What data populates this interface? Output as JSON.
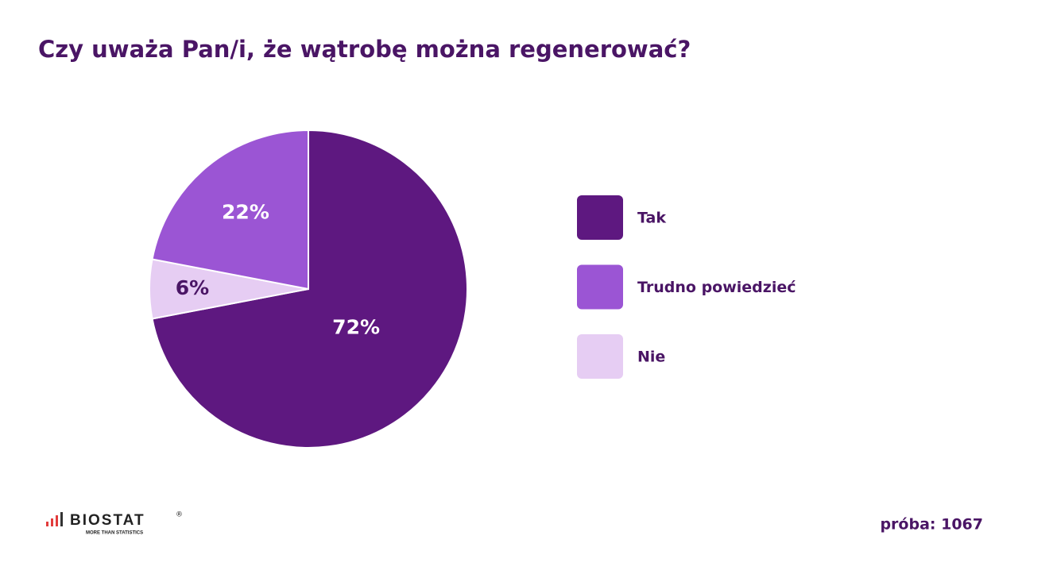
{
  "chart_data": {
    "type": "pie",
    "title": "Czy uważa Pan/i, że wątrobę można regenerować?",
    "categories": [
      "Tak",
      "Trudno powiedzieć",
      "Nie"
    ],
    "values": [
      72,
      22,
      6
    ],
    "value_labels": [
      "72%",
      "22%",
      "6%"
    ],
    "colors": [
      "#5e1880",
      "#9b55d4",
      "#e6cdf3"
    ],
    "legend": "right",
    "note": "próba: 1067"
  },
  "logo": {
    "text": "BIOSTAT",
    "tagline": "MORE THAN STATISTICS",
    "mark": "®"
  }
}
